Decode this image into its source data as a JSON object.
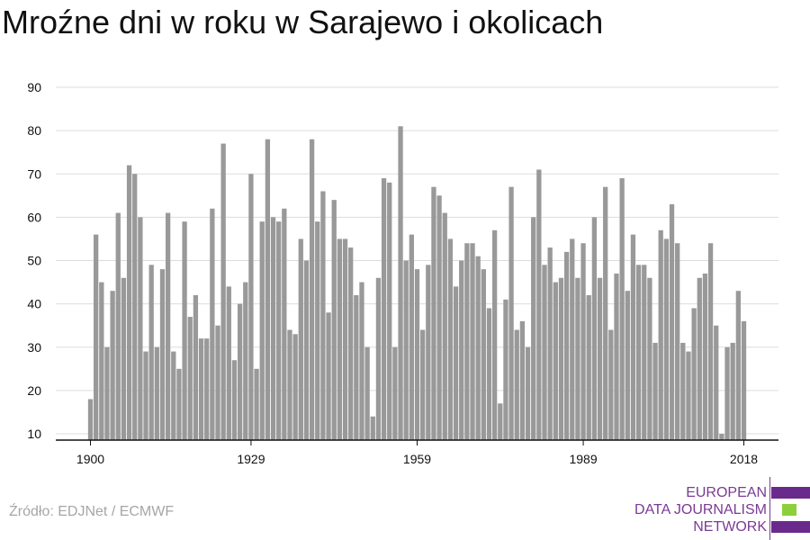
{
  "title": "Mroźne dni w roku w Sarajewo i okolicach",
  "source": "Źródło: EDJNet / ECMWF",
  "logo": {
    "lines": [
      "EUROPEAN",
      "DATA JOURNALISM",
      "NETWORK"
    ],
    "colors": {
      "purple": "#6a2a8c",
      "green": "#8dcf3a",
      "text": "#7b3a95"
    }
  },
  "colors": {
    "bar": "#999999",
    "grid": "#dddddd",
    "axis": "#111111",
    "text": "#111111"
  },
  "chart_data": {
    "type": "bar",
    "title": "Mroźne dni w roku w Sarajewo i okolicach",
    "xlabel": "",
    "ylabel": "",
    "x_start": 1900,
    "x_end": 2018,
    "xticks": [
      1900,
      1929,
      1959,
      1989,
      2018
    ],
    "yticks": [
      10,
      20,
      30,
      40,
      50,
      60,
      70,
      80,
      90
    ],
    "ylim": [
      10,
      90
    ],
    "grid": true,
    "values": [
      18,
      56,
      45,
      30,
      43,
      61,
      46,
      72,
      70,
      60,
      29,
      49,
      30,
      48,
      61,
      29,
      25,
      59,
      37,
      42,
      32,
      32,
      62,
      35,
      77,
      44,
      27,
      40,
      45,
      70,
      25,
      59,
      78,
      60,
      59,
      62,
      34,
      33,
      55,
      50,
      78,
      59,
      66,
      38,
      64,
      55,
      55,
      53,
      42,
      45,
      30,
      14,
      46,
      69,
      68,
      30,
      81,
      50,
      56,
      48,
      34,
      49,
      67,
      65,
      61,
      55,
      44,
      50,
      54,
      54,
      51,
      48,
      39,
      57,
      17,
      41,
      67,
      34,
      36,
      30,
      60,
      71,
      49,
      53,
      45,
      46,
      52,
      55,
      46,
      54,
      42,
      60,
      46,
      67,
      34,
      47,
      69,
      43,
      56,
      49,
      49,
      46,
      31,
      57,
      55,
      63,
      54,
      31,
      29,
      39,
      46,
      47,
      54,
      35,
      10,
      30,
      31,
      43,
      36
    ]
  }
}
